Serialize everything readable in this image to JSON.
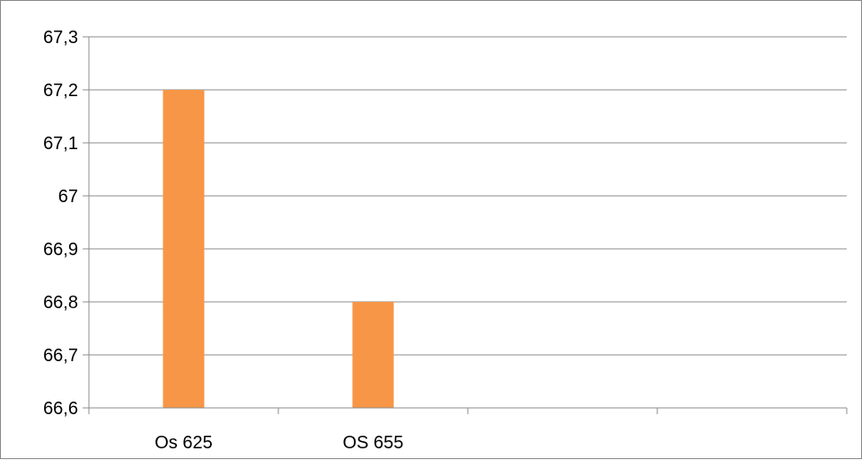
{
  "chart_data": {
    "type": "bar",
    "categories": [
      "Os 625",
      "OS 655",
      "",
      ""
    ],
    "series": [
      {
        "values": [
          67.2,
          66.8,
          null,
          null
        ],
        "color": "#f79646"
      }
    ],
    "ylim": [
      66.6,
      67.3
    ],
    "yticks": [
      "66,6",
      "66,7",
      "66,8",
      "66,9",
      "67",
      "67,1",
      "67,2",
      "67,3"
    ],
    "ytick_values": [
      66.6,
      66.7,
      66.8,
      66.9,
      67.0,
      67.1,
      67.2,
      67.3
    ],
    "grid": true,
    "legend": "none",
    "title": "",
    "xlabel": "",
    "ylabel": ""
  }
}
